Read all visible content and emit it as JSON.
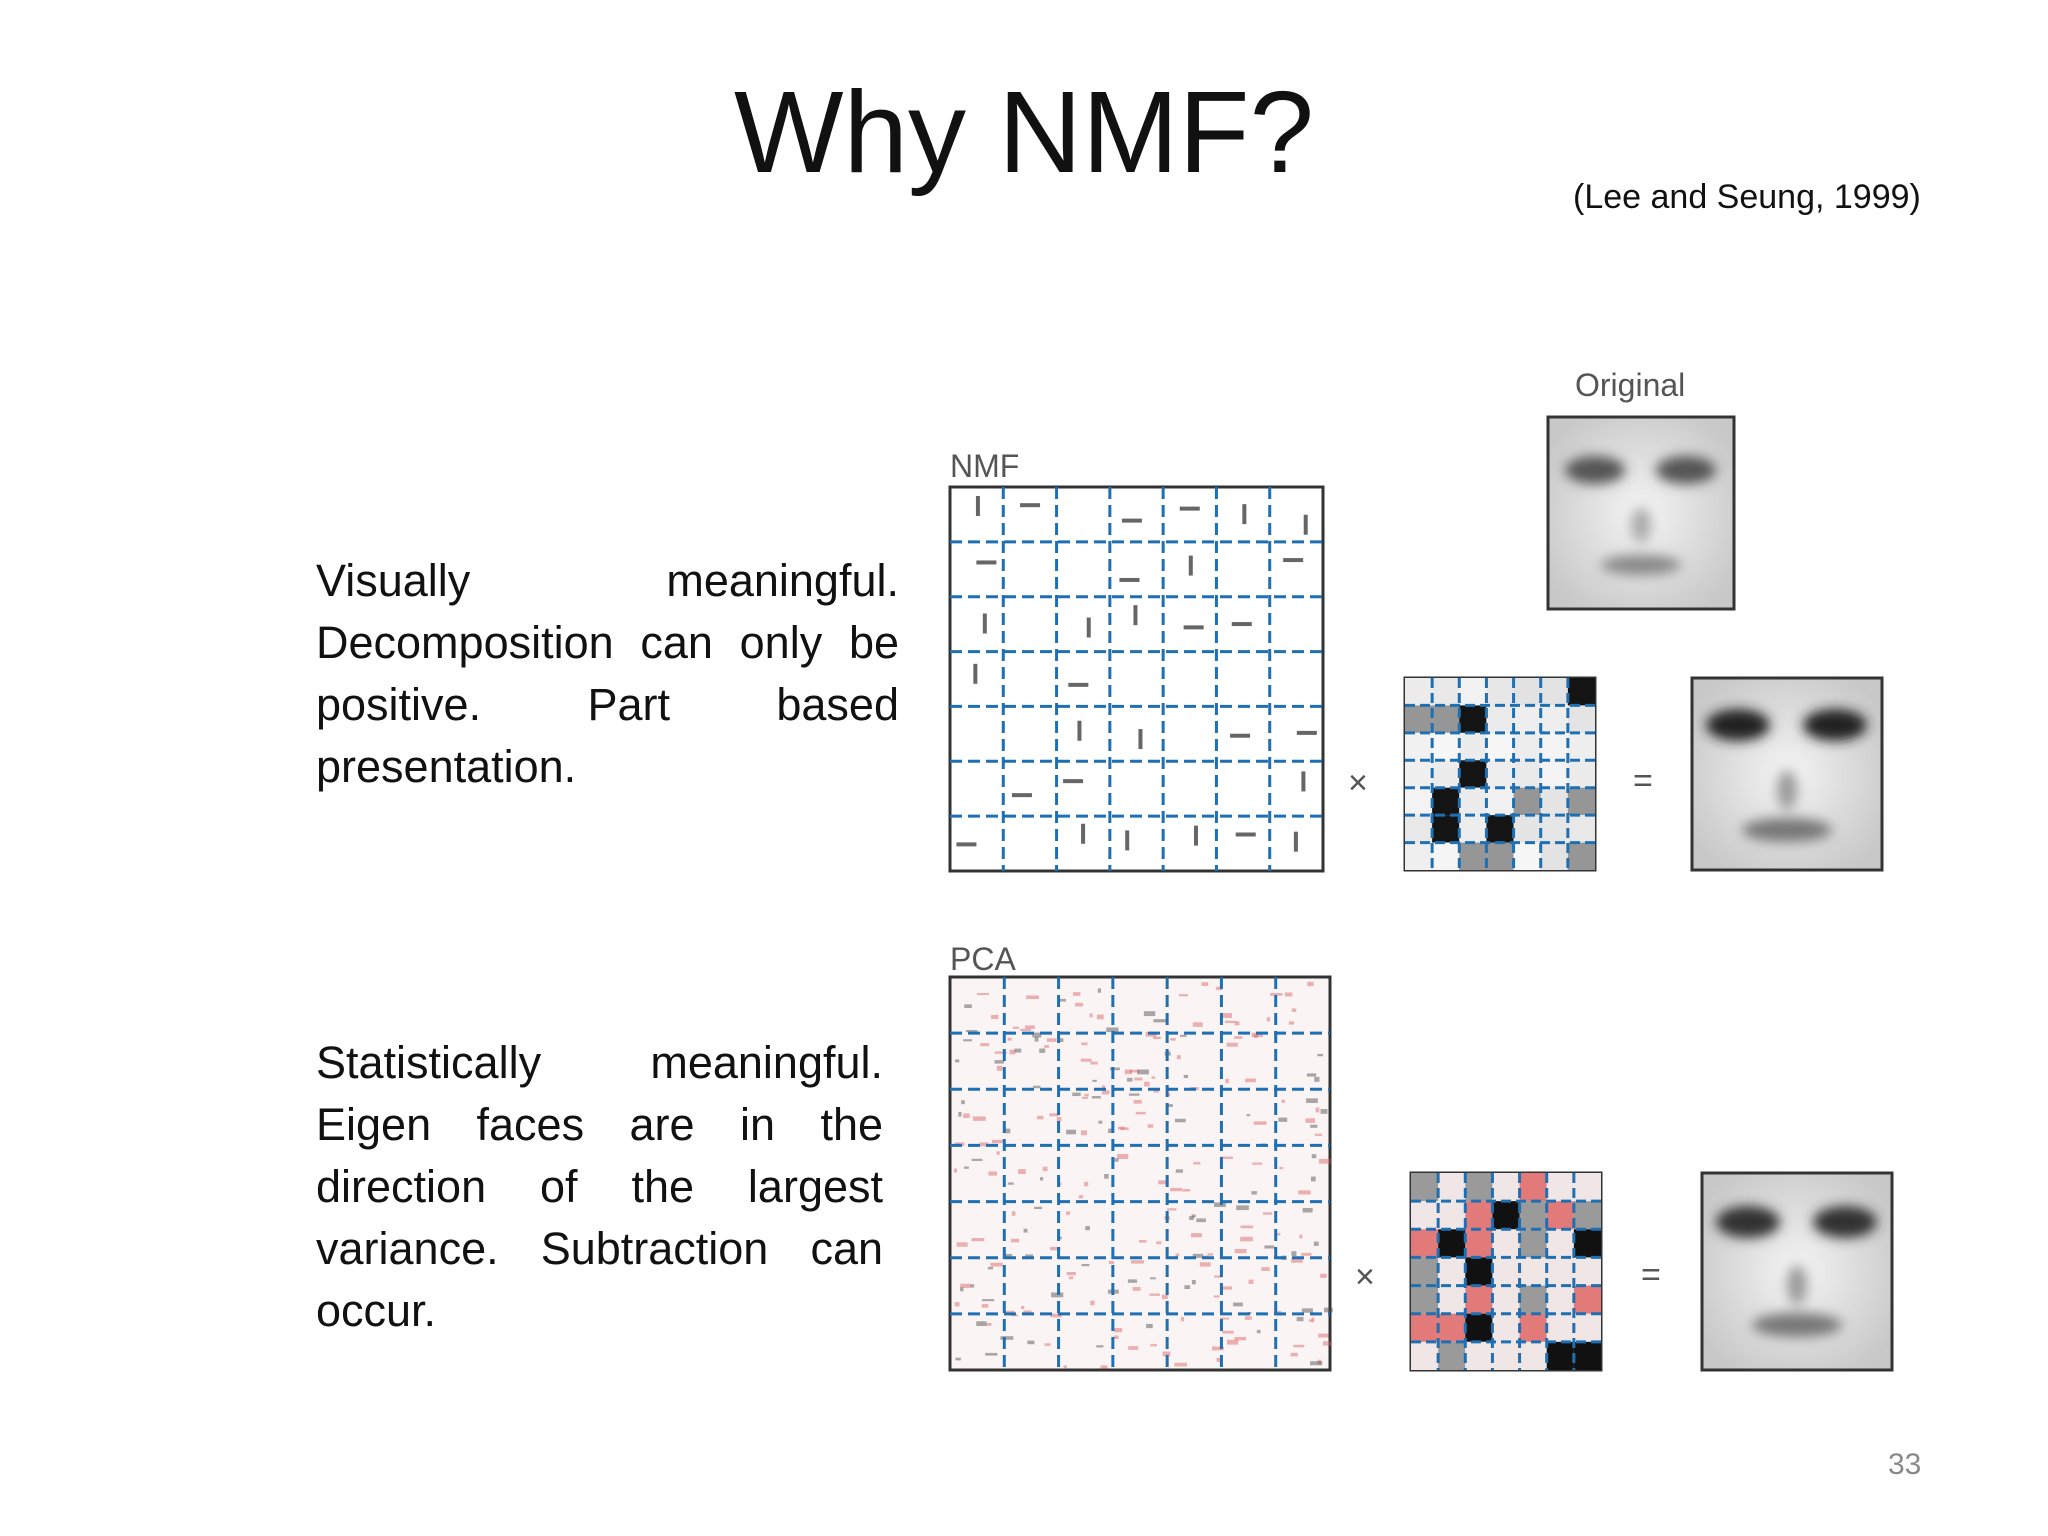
{
  "slide": {
    "title": "Why NMF?",
    "citation": "(Lee and Seung, 1999)",
    "nmf_text": "Visually meaningful. Decomposition can only be positive. Part based presentation.",
    "pca_text": "Statistically meaningful. Eigen faces are in the direction of the largest variance. Subtraction can occur.",
    "page_number": "33"
  },
  "figure": {
    "original_label": "Original",
    "nmf_label": "NMF",
    "pca_label": "PCA",
    "times_symbol": "×",
    "equals_symbol": "=",
    "grid_color": "#1f6fb3"
  }
}
